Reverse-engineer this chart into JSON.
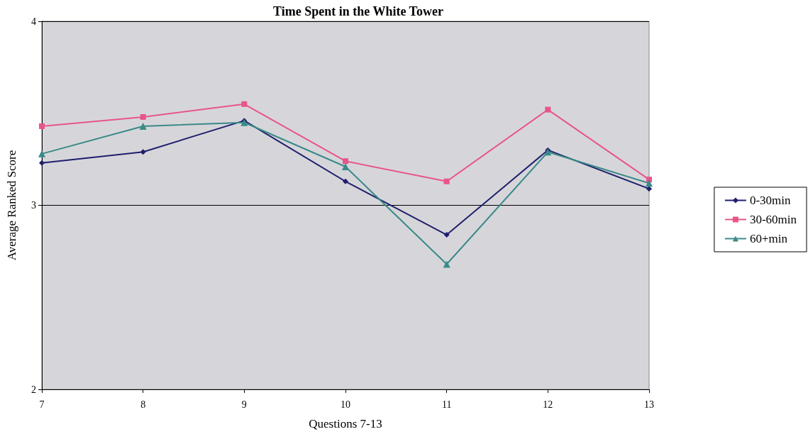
{
  "chart_data": {
    "type": "line",
    "title": "Time Spent in the White Tower",
    "xlabel": "Questions 7-13",
    "ylabel": "Average Ranked Score",
    "x": [
      7,
      8,
      9,
      10,
      11,
      12,
      13
    ],
    "xlim": [
      7,
      13
    ],
    "xticks": [
      7,
      8,
      9,
      10,
      11,
      12,
      13
    ],
    "ylim": [
      2,
      4
    ],
    "yticks": [
      2,
      3,
      4
    ],
    "grid": "y",
    "legend": "right",
    "series": [
      {
        "name": "0-30min",
        "color": "#1f1f6e",
        "marker": "diamond",
        "values": [
          3.23,
          3.29,
          3.46,
          3.13,
          2.84,
          3.3,
          3.09
        ]
      },
      {
        "name": "30-60min",
        "color": "#e8558a",
        "marker": "square",
        "values": [
          3.43,
          3.48,
          3.55,
          3.24,
          3.13,
          3.52,
          3.14
        ]
      },
      {
        "name": "60+min",
        "color": "#3a8a88",
        "marker": "triangle",
        "values": [
          3.28,
          3.43,
          3.45,
          3.21,
          2.68,
          3.29,
          3.12
        ]
      }
    ]
  }
}
